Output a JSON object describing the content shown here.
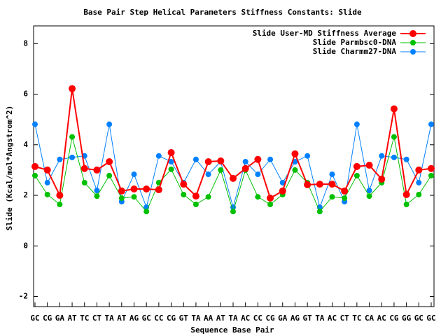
{
  "chart_data": {
    "type": "line",
    "title": "Base Pair Step Helical Parameters Stiffness Constants: Slide",
    "xlabel": "Sequence Base Pair",
    "ylabel": "Slide (Kcal/mol*Angstrom^2)",
    "categories": [
      "GC",
      "CG",
      "GA",
      "AT",
      "TC",
      "CT",
      "TA",
      "AT",
      "AG",
      "GC",
      "CC",
      "CG",
      "GT",
      "TA",
      "AA",
      "AT",
      "TA",
      "AC",
      "CC",
      "CG",
      "GA",
      "AG",
      "GT",
      "TA",
      "AC",
      "CT",
      "TC",
      "CA",
      "AC",
      "CG",
      "GG",
      "GC",
      "GC"
    ],
    "ylim": [
      -2.4,
      8.7
    ],
    "yticks": [
      -2,
      0,
      2,
      4,
      6,
      8
    ],
    "legend": "top-right",
    "series": [
      {
        "name": "Slide User-MD Stiffness Average",
        "color": "#ff0000",
        "values": [
          3.14,
          3.0,
          2.0,
          6.22,
          3.06,
          3.0,
          3.33,
          2.17,
          2.25,
          2.25,
          2.22,
          3.69,
          2.44,
          1.97,
          3.33,
          3.36,
          2.67,
          3.06,
          3.42,
          1.89,
          2.17,
          3.64,
          2.42,
          2.44,
          2.44,
          2.17,
          3.14,
          3.19,
          2.64,
          5.42,
          2.03,
          3.0,
          3.06
        ]
      },
      {
        "name": "Slide Parmbsc0-DNA",
        "color": "#00c000",
        "values": [
          2.78,
          2.03,
          1.64,
          4.31,
          2.5,
          1.97,
          2.78,
          1.89,
          1.94,
          1.36,
          2.5,
          3.03,
          2.03,
          1.64,
          1.94,
          3.0,
          1.36,
          3.0,
          1.94,
          1.64,
          2.03,
          3.0,
          2.5,
          1.36,
          1.94,
          1.89,
          2.78,
          1.97,
          2.5,
          4.31,
          1.64,
          2.03,
          2.78
        ]
      },
      {
        "name": "Slide Charmm27-DNA",
        "color": "#0080ff",
        "values": [
          4.81,
          2.5,
          3.42,
          3.5,
          3.56,
          2.19,
          4.81,
          1.75,
          2.83,
          1.53,
          3.56,
          3.33,
          2.5,
          3.42,
          2.83,
          3.33,
          1.53,
          3.33,
          2.83,
          3.42,
          2.5,
          3.33,
          3.56,
          1.53,
          2.83,
          1.75,
          4.81,
          2.19,
          3.56,
          3.5,
          3.42,
          2.5,
          4.81
        ]
      }
    ]
  }
}
